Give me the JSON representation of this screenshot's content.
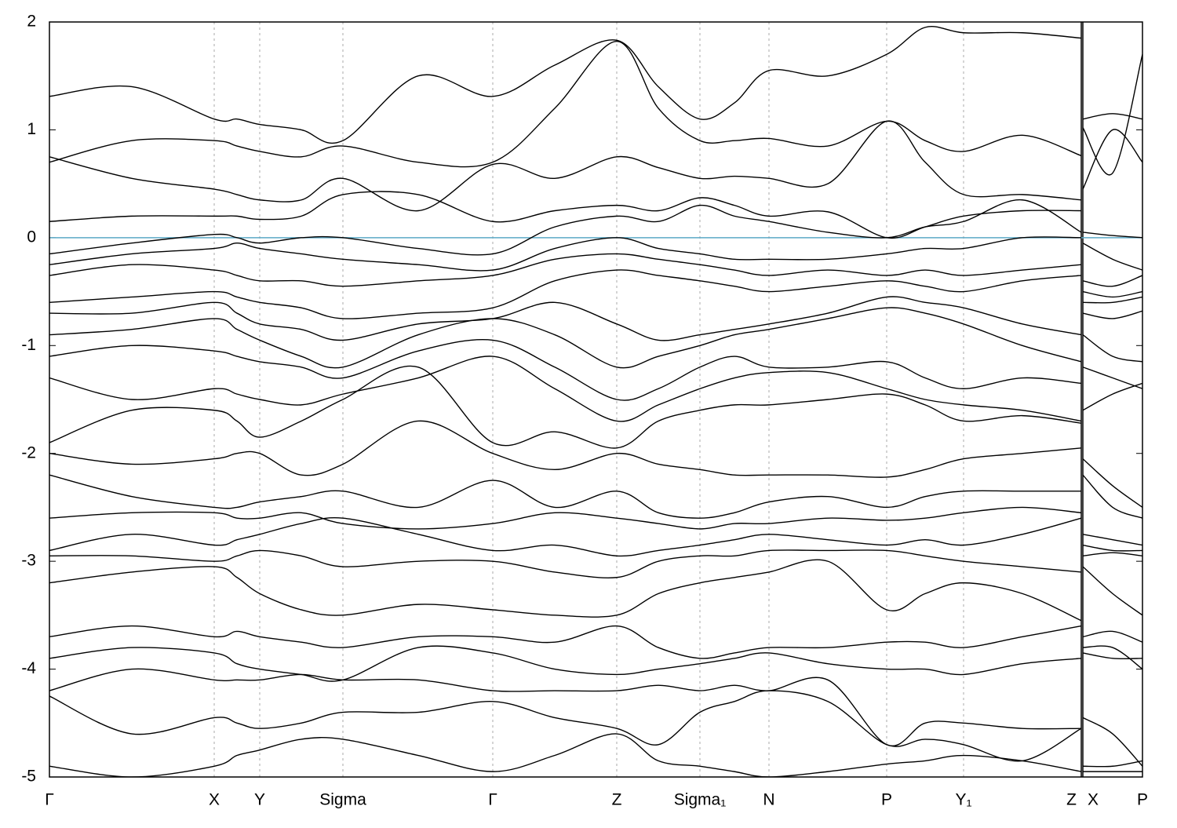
{
  "chart_data": {
    "type": "line",
    "color": "#000000",
    "ylim": [
      -5,
      2
    ],
    "yticks": [
      -5,
      -4,
      -3,
      -2,
      -1,
      0,
      1,
      2
    ],
    "xlim": [
      0,
      1.393
    ],
    "xticks": [
      {
        "value": 0,
        "label": "Γ"
      },
      {
        "value": 0.21,
        "label": "X"
      },
      {
        "value": 0.268,
        "label": "Y"
      },
      {
        "value": 0.374,
        "label": "Sigma"
      },
      {
        "value": 0.565,
        "label": "Γ"
      },
      {
        "value": 0.723,
        "label": "Z"
      },
      {
        "value": 0.829,
        "label": "Sigma₁"
      },
      {
        "value": 0.917,
        "label": "N"
      },
      {
        "value": 1.067,
        "label": "P"
      },
      {
        "value": 1.165,
        "label": "Y₁"
      },
      {
        "value": 1.315,
        "label": "Z"
      },
      {
        "value": 1.317,
        "label": "X"
      },
      {
        "value": 1.393,
        "label": "P"
      }
    ],
    "grid": true,
    "hline": 0,
    "hline_color": "#5ba9c6",
    "x": [
      0,
      0.105,
      0.21,
      0.239,
      0.268,
      0.321,
      0.374,
      0.47,
      0.565,
      0.644,
      0.723,
      0.776,
      0.829,
      0.873,
      0.917,
      0.992,
      1.067,
      1.116,
      1.165,
      1.24,
      1.315,
      1.316,
      1.317,
      1.355,
      1.393
    ],
    "series": [
      {
        "values": [
          1.31,
          1.4,
          1.1,
          1.1,
          1.05,
          1.0,
          0.9,
          1.5,
          1.31,
          1.6,
          1.83,
          1.4,
          1.1,
          1.25,
          1.55,
          1.5,
          1.7,
          1.95,
          1.9,
          1.9,
          1.85,
          null,
          1.1,
          1.15,
          1.1
        ]
      },
      {
        "values": [
          0.7,
          0.9,
          0.9,
          0.85,
          0.8,
          0.75,
          0.85,
          0.7,
          0.7,
          1.2,
          1.82,
          1.2,
          0.9,
          0.9,
          0.92,
          0.85,
          1.08,
          0.9,
          0.8,
          0.95,
          0.76,
          null,
          1.02,
          0.6,
          1.7
        ]
      },
      {
        "values": [
          0.75,
          0.55,
          0.45,
          0.4,
          0.35,
          0.35,
          0.55,
          0.25,
          0.68,
          0.55,
          0.75,
          0.65,
          0.55,
          0.57,
          0.55,
          0.5,
          1.08,
          0.7,
          0.4,
          0.4,
          0.35,
          null,
          0.45,
          1.0,
          0.7
        ]
      },
      {
        "values": [
          0.15,
          0.2,
          0.2,
          0.2,
          0.17,
          0.2,
          0.4,
          0.4,
          0.15,
          0.25,
          0.3,
          0.25,
          0.37,
          0.3,
          0.2,
          0.24,
          0.0,
          0.1,
          0.2,
          0.25,
          0.25,
          null,
          0.05,
          0.02,
          0.0
        ]
      },
      {
        "values": [
          -0.15,
          -0.05,
          0.03,
          0.0,
          -0.05,
          0.0,
          0.0,
          -0.1,
          -0.15,
          0.1,
          0.2,
          0.15,
          0.3,
          0.2,
          0.15,
          0.05,
          0.0,
          0.1,
          0.15,
          0.35,
          0.05,
          null,
          -0.05,
          -0.2,
          -0.3
        ]
      },
      {
        "values": [
          -0.25,
          -0.15,
          -0.1,
          -0.05,
          -0.1,
          -0.15,
          -0.2,
          -0.25,
          -0.3,
          -0.1,
          0.0,
          -0.1,
          -0.15,
          -0.2,
          -0.2,
          -0.2,
          -0.15,
          -0.1,
          -0.1,
          0.0,
          0.0,
          null,
          -0.4,
          -0.45,
          -0.35
        ]
      },
      {
        "values": [
          -0.35,
          -0.25,
          -0.3,
          -0.35,
          -0.4,
          -0.4,
          -0.45,
          -0.4,
          -0.35,
          -0.2,
          -0.15,
          -0.2,
          -0.25,
          -0.3,
          -0.35,
          -0.3,
          -0.35,
          -0.3,
          -0.35,
          -0.3,
          -0.25,
          null,
          -0.5,
          -0.55,
          -0.5
        ]
      },
      {
        "values": [
          -0.6,
          -0.55,
          -0.5,
          -0.55,
          -0.6,
          -0.65,
          -0.75,
          -0.7,
          -0.65,
          -0.4,
          -0.3,
          -0.35,
          -0.4,
          -0.45,
          -0.5,
          -0.45,
          -0.4,
          -0.45,
          -0.5,
          -0.4,
          -0.35,
          null,
          -0.6,
          -0.6,
          -0.55
        ]
      },
      {
        "values": [
          -0.7,
          -0.7,
          -0.6,
          -0.7,
          -0.8,
          -0.85,
          -0.95,
          -0.8,
          -0.75,
          -0.6,
          -0.8,
          -0.95,
          -0.9,
          -0.85,
          -0.8,
          -0.7,
          -0.55,
          -0.6,
          -0.65,
          -0.8,
          -0.9,
          null,
          -0.7,
          -0.75,
          -0.68
        ]
      },
      {
        "values": [
          -0.9,
          -0.85,
          -0.75,
          -0.85,
          -0.95,
          -1.1,
          -1.2,
          -0.9,
          -0.75,
          -0.9,
          -1.2,
          -1.1,
          -1.0,
          -0.9,
          -0.85,
          -0.75,
          -0.65,
          -0.7,
          -0.8,
          -1.0,
          -1.15,
          null,
          -0.9,
          -1.1,
          -1.15
        ]
      },
      {
        "values": [
          -1.1,
          -1.0,
          -1.05,
          -1.1,
          -1.15,
          -1.2,
          -1.3,
          -1.05,
          -0.95,
          -1.2,
          -1.5,
          -1.4,
          -1.2,
          -1.1,
          -1.2,
          -1.2,
          -1.15,
          -1.3,
          -1.4,
          -1.3,
          -1.35,
          null,
          -1.2,
          -1.3,
          -1.4
        ]
      },
      {
        "values": [
          -1.3,
          -1.5,
          -1.4,
          -1.45,
          -1.5,
          -1.55,
          -1.45,
          -1.3,
          -1.1,
          -1.4,
          -1.7,
          -1.55,
          -1.4,
          -1.3,
          -1.25,
          -1.25,
          -1.4,
          -1.5,
          -1.55,
          -1.6,
          -1.7,
          null,
          -1.6,
          -1.45,
          -1.35
        ]
      },
      {
        "values": [
          -1.9,
          -1.6,
          -1.6,
          -1.7,
          -1.85,
          -1.7,
          -1.5,
          -1.2,
          -1.9,
          -1.8,
          -1.95,
          -1.7,
          -1.6,
          -1.55,
          -1.55,
          -1.5,
          -1.45,
          -1.55,
          -1.7,
          -1.65,
          -1.72,
          null,
          -2.05,
          -2.3,
          -2.5
        ]
      },
      {
        "values": [
          -2.0,
          -2.1,
          -2.05,
          -2.0,
          -2.0,
          -2.2,
          -2.1,
          -1.7,
          -2.0,
          -2.15,
          -2.0,
          -2.1,
          -2.15,
          -2.2,
          -2.2,
          -2.2,
          -2.22,
          -2.15,
          -2.05,
          -2.0,
          -1.95,
          null,
          -2.2,
          -2.5,
          -2.6
        ]
      },
      {
        "values": [
          -2.2,
          -2.4,
          -2.5,
          -2.5,
          -2.45,
          -2.4,
          -2.35,
          -2.5,
          -2.25,
          -2.5,
          -2.35,
          -2.55,
          -2.6,
          -2.55,
          -2.45,
          -2.4,
          -2.5,
          -2.4,
          -2.35,
          -2.35,
          -2.35,
          null,
          -2.75,
          -2.8,
          -2.85
        ]
      },
      {
        "values": [
          -2.6,
          -2.55,
          -2.55,
          -2.6,
          -2.6,
          -2.55,
          -2.65,
          -2.7,
          -2.65,
          -2.55,
          -2.6,
          -2.65,
          -2.7,
          -2.65,
          -2.65,
          -2.6,
          -2.62,
          -2.6,
          -2.55,
          -2.5,
          -2.55,
          null,
          -2.85,
          -2.9,
          -2.9
        ]
      },
      {
        "values": [
          -2.9,
          -2.75,
          -2.85,
          -2.8,
          -2.75,
          -2.65,
          -2.6,
          -2.75,
          -2.9,
          -2.85,
          -2.95,
          -2.9,
          -2.85,
          -2.8,
          -2.75,
          -2.8,
          -2.85,
          -2.8,
          -2.85,
          -2.75,
          -2.6,
          null,
          -2.95,
          -2.92,
          -2.95
        ]
      },
      {
        "values": [
          -2.95,
          -2.95,
          -3.0,
          -2.95,
          -2.9,
          -2.95,
          -3.05,
          -3.0,
          -3.0,
          -3.1,
          -3.15,
          -3.0,
          -2.95,
          -2.95,
          -2.9,
          -2.9,
          -2.9,
          -2.95,
          -3.0,
          -3.05,
          -3.1,
          null,
          -3.05,
          -3.3,
          -3.5
        ]
      },
      {
        "values": [
          -3.2,
          -3.1,
          -3.05,
          -3.15,
          -3.3,
          -3.45,
          -3.5,
          -3.4,
          -3.45,
          -3.5,
          -3.5,
          -3.3,
          -3.2,
          -3.15,
          -3.1,
          -3.0,
          -3.45,
          -3.3,
          -3.2,
          -3.3,
          -3.55,
          null,
          -3.7,
          -3.65,
          -3.75
        ]
      },
      {
        "values": [
          -3.7,
          -3.6,
          -3.7,
          -3.65,
          -3.7,
          -3.75,
          -3.8,
          -3.7,
          -3.7,
          -3.75,
          -3.6,
          -3.8,
          -3.9,
          -3.85,
          -3.8,
          -3.8,
          -3.75,
          -3.75,
          -3.8,
          -3.7,
          -3.6,
          null,
          -3.8,
          -3.8,
          -4.0
        ]
      },
      {
        "values": [
          -3.9,
          -3.8,
          -3.85,
          -3.95,
          -4.0,
          -4.05,
          -4.1,
          -3.8,
          -3.85,
          -4.0,
          -4.05,
          -4.0,
          -3.95,
          -3.9,
          -3.85,
          -3.95,
          -4.0,
          -4.0,
          -4.05,
          -3.95,
          -3.9,
          null,
          -3.85,
          -3.9,
          -3.9
        ]
      },
      {
        "values": [
          -4.2,
          -4.0,
          -4.1,
          -4.1,
          -4.1,
          -4.05,
          -4.1,
          -4.1,
          -4.2,
          -4.2,
          -4.2,
          -4.15,
          -4.2,
          -4.15,
          -4.2,
          -4.1,
          -4.7,
          -4.5,
          -4.5,
          -4.55,
          -4.55,
          null,
          -4.45,
          -4.6,
          -4.9
        ]
      },
      {
        "values": [
          -4.25,
          -4.6,
          -4.45,
          -4.5,
          -4.55,
          -4.5,
          -4.4,
          -4.4,
          -4.3,
          -4.45,
          -4.55,
          -4.7,
          -4.4,
          -4.3,
          -4.2,
          -4.3,
          -4.7,
          -4.65,
          -4.7,
          -4.85,
          -4.55,
          null,
          -4.9,
          -4.9,
          -4.85
        ]
      },
      {
        "values": [
          -4.9,
          -5.0,
          -4.9,
          -4.8,
          -4.75,
          -4.65,
          -4.65,
          -4.8,
          -4.95,
          -4.8,
          -4.6,
          -4.85,
          -4.9,
          -4.95,
          -5.0,
          -4.95,
          -4.88,
          -4.85,
          -4.8,
          -4.85,
          -4.95,
          null,
          -4.95,
          -4.95,
          -4.95
        ]
      }
    ]
  }
}
